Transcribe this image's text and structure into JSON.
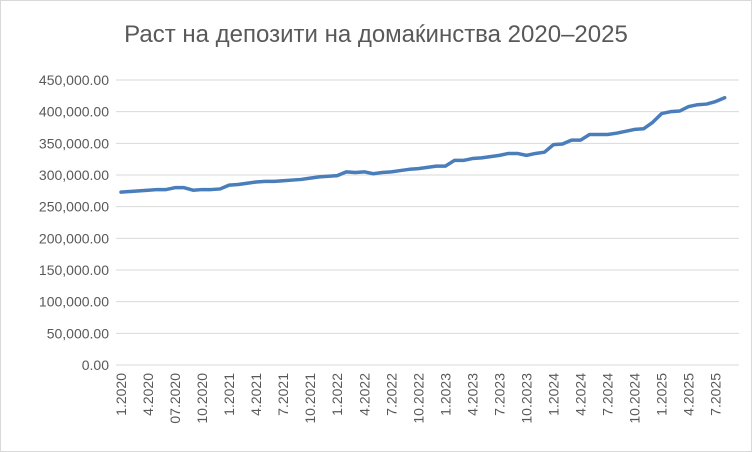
{
  "chart_data": {
    "type": "line",
    "title": "Раст на депозити на домаќинства 2020–2025",
    "xlabel": "",
    "ylabel": "",
    "ylim": [
      0,
      450000
    ],
    "y_ticks": [
      "0.00",
      "50,000.00",
      "100,000.00",
      "150,000.00",
      "200,000.00",
      "250,000.00",
      "300,000.00",
      "350,000.00",
      "400,000.00",
      "450,000.00"
    ],
    "x_tick_labels": [
      "1.2020",
      "4.2020",
      "07.2020",
      "10.2020",
      "1.2021",
      "4.2021",
      "7.2021",
      "10.2021",
      "1.2022",
      "4.2022",
      "7.2022",
      "10.2022",
      "1.2023",
      "4.2023",
      "7.2023",
      "10.2023",
      "1.2024",
      "4.2024",
      "7.2024",
      "10.2024",
      "1.2025",
      "4.2025",
      "7.2025"
    ],
    "x_tick_every": 3,
    "grid": true,
    "legend": "none",
    "line_color": "#4a7ebb",
    "values": [
      273000,
      274000,
      275000,
      276000,
      277000,
      277000,
      280000,
      280000,
      276000,
      277000,
      277000,
      278000,
      284000,
      285000,
      287000,
      289000,
      290000,
      290000,
      291000,
      292000,
      293000,
      295000,
      297000,
      298000,
      299000,
      305000,
      304000,
      305000,
      302000,
      304000,
      305000,
      307000,
      309000,
      310000,
      312000,
      314000,
      314000,
      323000,
      323000,
      326000,
      327000,
      329000,
      331000,
      334000,
      334000,
      331000,
      334000,
      336000,
      348000,
      349000,
      355000,
      355000,
      364000,
      364000,
      364000,
      366000,
      369000,
      372000,
      373000,
      383000,
      397000,
      400000,
      401000,
      408000,
      411000,
      412000,
      416000,
      422000
    ]
  }
}
